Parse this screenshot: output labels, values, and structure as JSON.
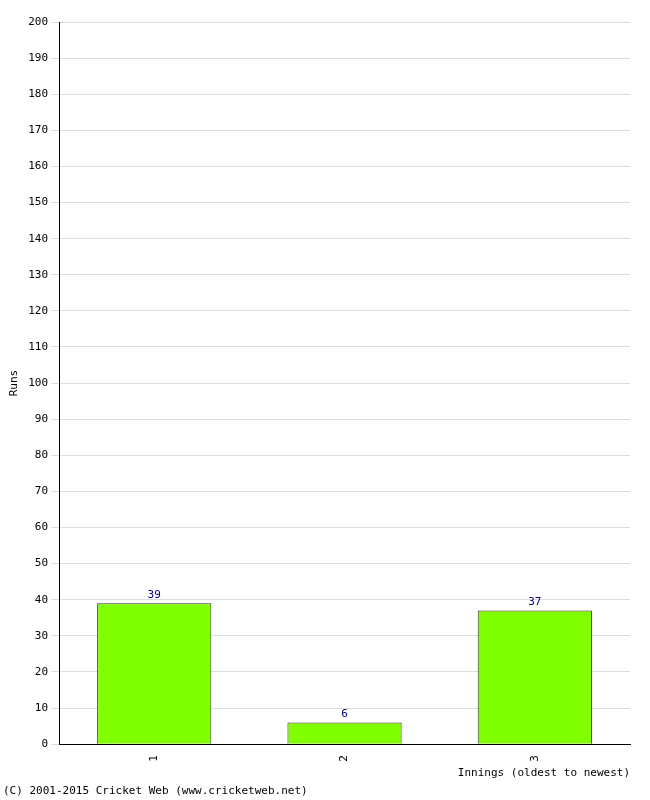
{
  "chart_data": {
    "type": "bar",
    "categories": [
      "1",
      "2",
      "3"
    ],
    "values": [
      39,
      6,
      37
    ],
    "color": "#80ff00",
    "xlabel": "Innings (oldest to newest)",
    "ylabel": "Runs",
    "ylim": [
      0,
      200
    ],
    "yticks": [
      0,
      10,
      20,
      30,
      40,
      50,
      60,
      70,
      80,
      90,
      100,
      110,
      120,
      130,
      140,
      150,
      160,
      170,
      180,
      190,
      200
    ],
    "grid": true,
    "data_labels": true,
    "annotations": [
      "(C) 2001-2015 Cricket Web (www.cricketweb.net)"
    ]
  }
}
